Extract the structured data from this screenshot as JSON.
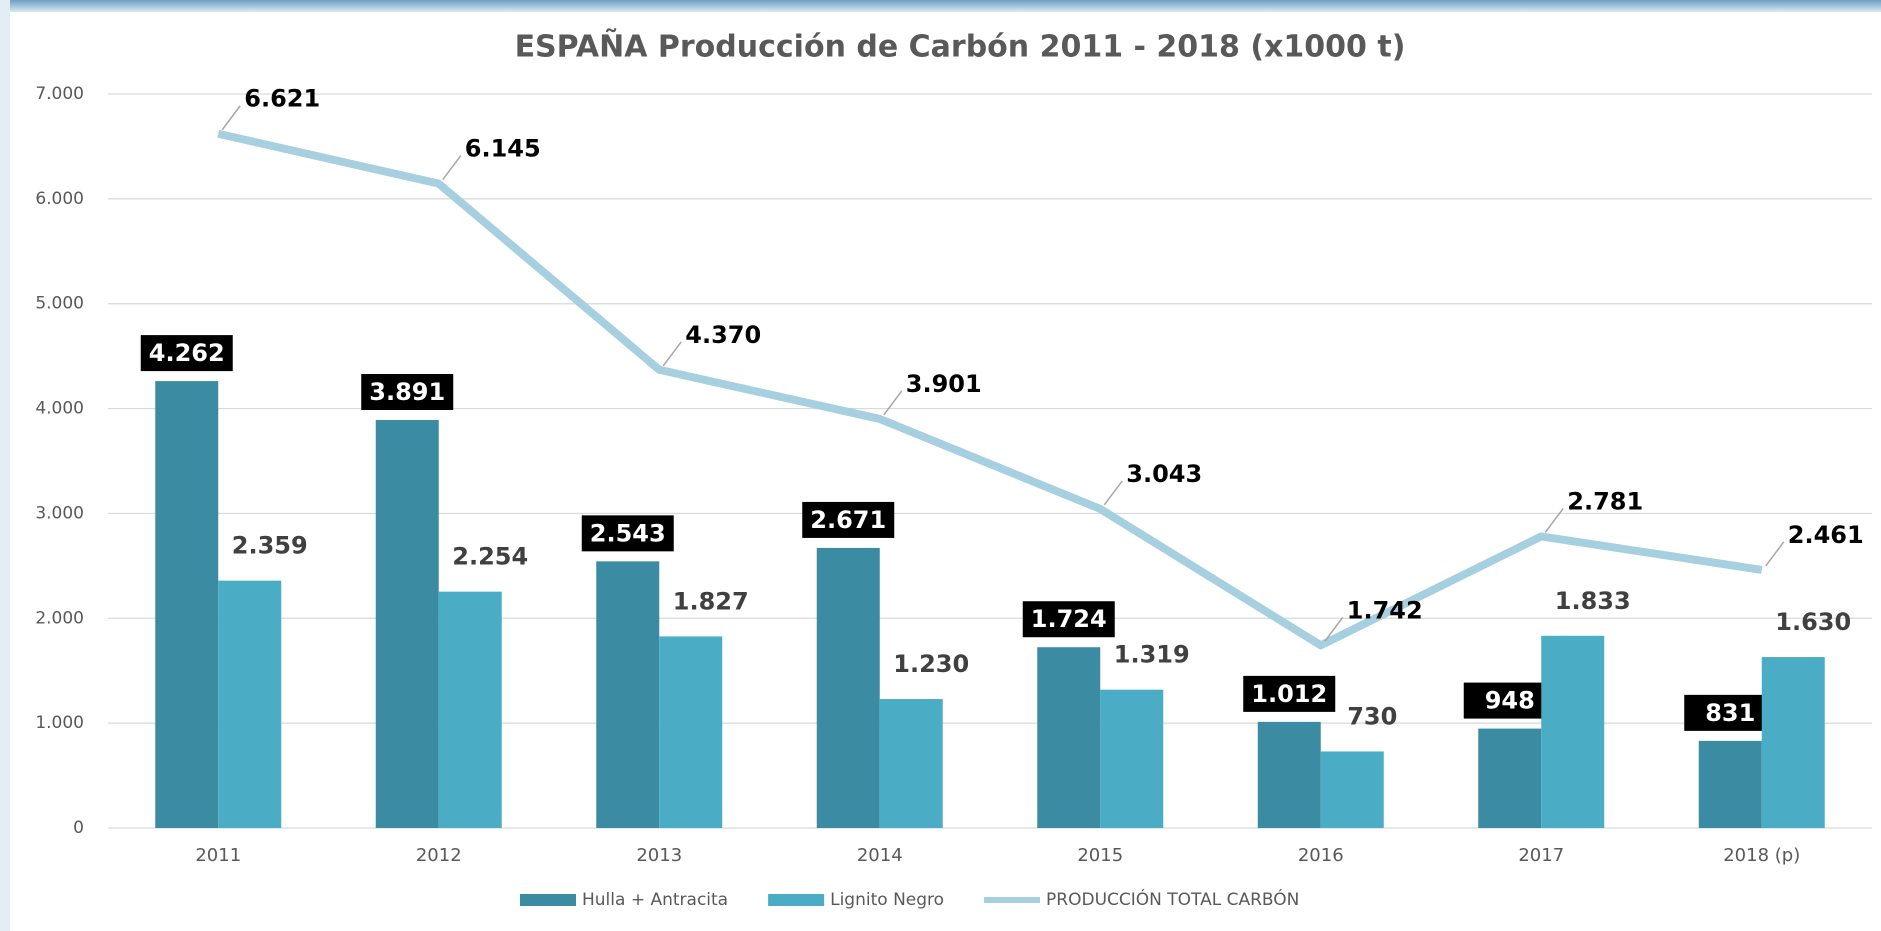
{
  "chart_data": {
    "type": "bar",
    "title": "ESPAÑA Producción de Carbón 2011 - 2018  (x1000 t)",
    "categories": [
      "2011",
      "2012",
      "2013",
      "2014",
      "2015",
      "2016",
      "2017",
      "2018 (p)"
    ],
    "series": [
      {
        "name": "Hulla + Antracita",
        "type": "bar",
        "color": "#3b8ba2",
        "values": [
          4262,
          3891,
          2543,
          2671,
          1724,
          1012,
          948,
          831
        ],
        "value_labels": [
          "4.262",
          "3.891",
          "2.543",
          "2.671",
          "1.724",
          "1.012",
          "948",
          "831"
        ]
      },
      {
        "name": "Lignito Negro",
        "type": "bar",
        "color": "#4bacc6",
        "values": [
          2359,
          2254,
          1827,
          1230,
          1319,
          730,
          1833,
          1630
        ],
        "value_labels": [
          "2.359",
          "2.254",
          "1.827",
          "1.230",
          "1.319",
          "730",
          "1.833",
          "1.630"
        ]
      },
      {
        "name": "PRODUCCIÓN TOTAL CARBÓN",
        "type": "line",
        "color": "#a6cfdf",
        "values": [
          6621,
          6145,
          4370,
          3901,
          3043,
          1742,
          2781,
          2461
        ],
        "value_labels": [
          "6.621",
          "6.145",
          "4.370",
          "3.901",
          "3.043",
          "1.742",
          "2.781",
          "2.461"
        ]
      }
    ],
    "ylim": [
      0,
      7000
    ],
    "yticks": [
      0,
      {
        "value": 1000,
        "label": "1.000"
      },
      {
        "value": 2000,
        "label": "2.000"
      },
      {
        "value": 3000,
        "label": "3.000"
      },
      {
        "value": 4000,
        "label": "4.000"
      },
      {
        "value": 5000,
        "label": "5.000"
      },
      {
        "value": 6000,
        "label": "6.000"
      },
      {
        "value": 7000,
        "label": "7.000"
      }
    ],
    "grid": true,
    "legend": "bottom"
  }
}
